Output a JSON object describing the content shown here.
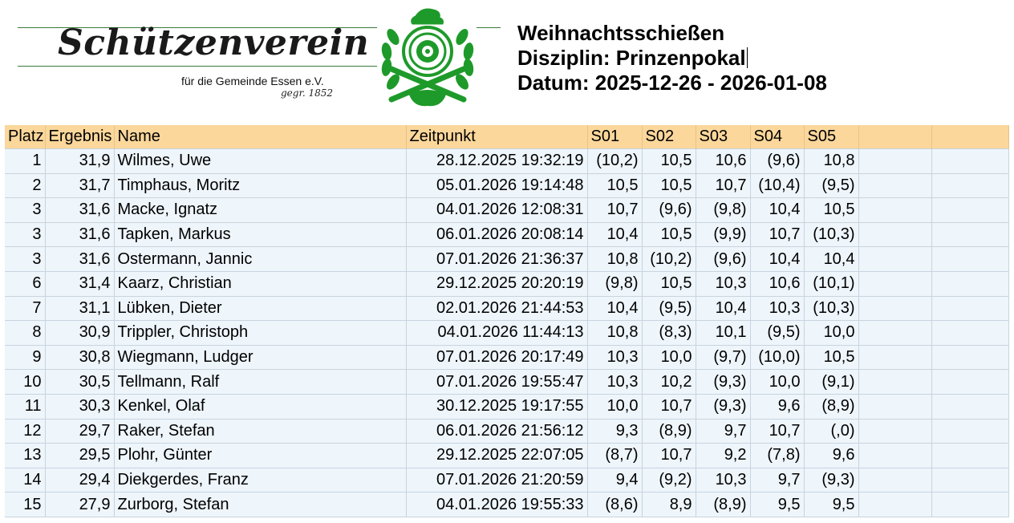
{
  "club": {
    "name": "Schützenverein",
    "subtitle": "für die Gemeinde Essen e.V.",
    "founded": "gegr. 1852",
    "colors": {
      "emblem_green": "#1e9a2a",
      "header_bg": "#fbd79b",
      "row_bg": "#eef5fb"
    }
  },
  "event": {
    "title": "Weihnachtsschießen",
    "discipline": "Disziplin: Prinzenpokal",
    "date": "Datum: 2025-12-26 - 2026-01-08"
  },
  "table": {
    "columns": [
      "Platz",
      "Ergebnis",
      "Name",
      "Zeitpunkt",
      "S01",
      "S02",
      "S03",
      "S04",
      "S05",
      "",
      ""
    ],
    "rows": [
      {
        "platz": "1",
        "ergebnis": "31,9",
        "name": "Wilmes, Uwe",
        "zeitpunkt": "28.12.2025 19:32:19",
        "s01": "(10,2)",
        "s02": "10,5",
        "s03": "10,6",
        "s04": "(9,6)",
        "s05": "10,8"
      },
      {
        "platz": "2",
        "ergebnis": "31,7",
        "name": "Timphaus, Moritz",
        "zeitpunkt": "05.01.2026 19:14:48",
        "s01": "10,5",
        "s02": "10,5",
        "s03": "10,7",
        "s04": "(10,4)",
        "s05": "(9,5)"
      },
      {
        "platz": "3",
        "ergebnis": "31,6",
        "name": "Macke, Ignatz",
        "zeitpunkt": "04.01.2026 12:08:31",
        "s01": "10,7",
        "s02": "(9,6)",
        "s03": "(9,8)",
        "s04": "10,4",
        "s05": "10,5"
      },
      {
        "platz": "3",
        "ergebnis": "31,6",
        "name": "Tapken, Markus",
        "zeitpunkt": "06.01.2026 20:08:14",
        "s01": "10,4",
        "s02": "10,5",
        "s03": "(9,9)",
        "s04": "10,7",
        "s05": "(10,3)"
      },
      {
        "platz": "3",
        "ergebnis": "31,6",
        "name": "Ostermann, Jannic",
        "zeitpunkt": "07.01.2026 21:36:37",
        "s01": "10,8",
        "s02": "(10,2)",
        "s03": "(9,6)",
        "s04": "10,4",
        "s05": "10,4"
      },
      {
        "platz": "6",
        "ergebnis": "31,4",
        "name": "Kaarz, Christian",
        "zeitpunkt": "29.12.2025 20:20:19",
        "s01": "(9,8)",
        "s02": "10,5",
        "s03": "10,3",
        "s04": "10,6",
        "s05": "(10,1)"
      },
      {
        "platz": "7",
        "ergebnis": "31,1",
        "name": "Lübken, Dieter",
        "zeitpunkt": "02.01.2026 21:44:53",
        "s01": "10,4",
        "s02": "(9,5)",
        "s03": "10,4",
        "s04": "10,3",
        "s05": "(10,3)"
      },
      {
        "platz": "8",
        "ergebnis": "30,9",
        "name": "Trippler, Christoph",
        "zeitpunkt": "04.01.2026 11:44:13",
        "s01": "10,8",
        "s02": "(8,3)",
        "s03": "10,1",
        "s04": "(9,5)",
        "s05": "10,0"
      },
      {
        "platz": "9",
        "ergebnis": "30,8",
        "name": "Wiegmann, Ludger",
        "zeitpunkt": "07.01.2026 20:17:49",
        "s01": "10,3",
        "s02": "10,0",
        "s03": "(9,7)",
        "s04": "(10,0)",
        "s05": "10,5"
      },
      {
        "platz": "10",
        "ergebnis": "30,5",
        "name": "Tellmann, Ralf",
        "zeitpunkt": "07.01.2026 19:55:47",
        "s01": "10,3",
        "s02": "10,2",
        "s03": "(9,3)",
        "s04": "10,0",
        "s05": "(9,1)"
      },
      {
        "platz": "11",
        "ergebnis": "30,3",
        "name": "Kenkel, Olaf",
        "zeitpunkt": "30.12.2025 19:17:55",
        "s01": "10,0",
        "s02": "10,7",
        "s03": "(9,3)",
        "s04": "9,6",
        "s05": "(8,9)"
      },
      {
        "platz": "12",
        "ergebnis": "29,7",
        "name": "Raker, Stefan",
        "zeitpunkt": "06.01.2026 21:56:12",
        "s01": "9,3",
        "s02": "(8,9)",
        "s03": "9,7",
        "s04": "10,7",
        "s05": "(,0)"
      },
      {
        "platz": "13",
        "ergebnis": "29,5",
        "name": "Plohr, Günter",
        "zeitpunkt": "29.12.2025 22:07:05",
        "s01": "(8,7)",
        "s02": "10,7",
        "s03": "9,2",
        "s04": "(7,8)",
        "s05": "9,6"
      },
      {
        "platz": "14",
        "ergebnis": "29,4",
        "name": "Diekgerdes, Franz",
        "zeitpunkt": "07.01.2026 21:20:59",
        "s01": "9,4",
        "s02": "(9,2)",
        "s03": "10,3",
        "s04": "9,7",
        "s05": "(9,3)"
      },
      {
        "platz": "15",
        "ergebnis": "27,9",
        "name": "Zurborg, Stefan",
        "zeitpunkt": "04.01.2026 19:55:33",
        "s01": "(8,6)",
        "s02": "8,9",
        "s03": "(8,9)",
        "s04": "9,5",
        "s05": "9,5"
      }
    ]
  }
}
